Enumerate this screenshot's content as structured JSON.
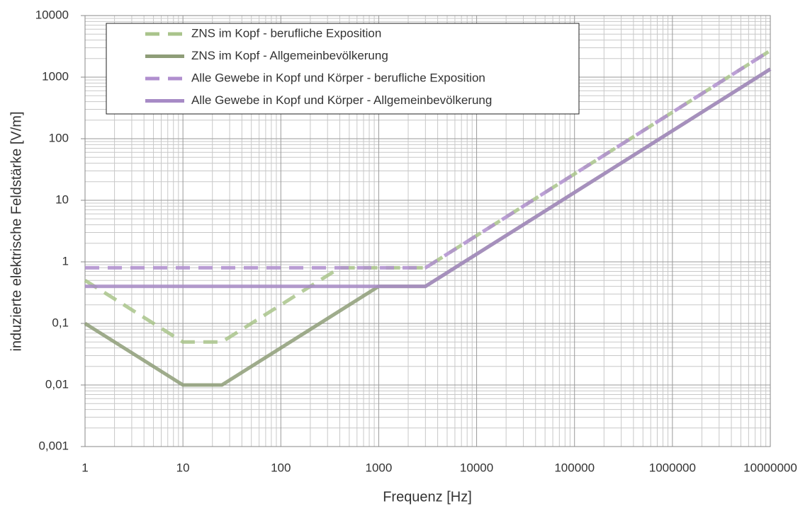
{
  "chart_data": {
    "type": "line",
    "x_label": "Frequenz [Hz]",
    "y_label": "induzierte elektrische Feldstärke [V/m]",
    "x_scale": "log",
    "y_scale": "log",
    "grid": true,
    "minor_grid": true,
    "xlim": [
      1,
      10000000
    ],
    "xticks": [
      1,
      10,
      100,
      1000,
      10000,
      100000,
      1000000,
      10000000
    ],
    "ylim": [
      0.001,
      10000
    ],
    "yticks": [
      {
        "value": 0.001,
        "label": "0,001"
      },
      {
        "value": 0.01,
        "label": "0,01"
      },
      {
        "value": 0.1,
        "label": "0,1"
      },
      1,
      10,
      100,
      1000,
      10000
    ],
    "legend": "top-left",
    "series": [
      {
        "name": "ZNS im Kopf - berufliche Exposition",
        "color": "#a9c48b",
        "dashed": true,
        "x": [
          1,
          10,
          25,
          400,
          3000,
          10000000
        ],
        "values": [
          0.5,
          0.05,
          0.05,
          0.8,
          0.8,
          2700
        ]
      },
      {
        "name": "ZNS im Kopf - Allgemeinbevölkerung",
        "color": "#8e9d78",
        "dashed": false,
        "x": [
          1,
          10,
          25,
          1000,
          3000,
          10000000
        ],
        "values": [
          0.1,
          0.01,
          0.01,
          0.4,
          0.4,
          1350
        ]
      },
      {
        "name": "Alle Gewebe in Kopf und Körper - berufliche Exposition",
        "color": "#b08fcf",
        "dashed": true,
        "x": [
          1,
          3000,
          10000000
        ],
        "values": [
          0.8,
          0.8,
          2700
        ]
      },
      {
        "name": "Alle Gewebe in Kopf und Körper - Allgemeinbevölkerung",
        "color": "#a78bc6",
        "dashed": false,
        "x": [
          1,
          3000,
          10000000
        ],
        "values": [
          0.4,
          0.4,
          1350
        ]
      }
    ]
  }
}
